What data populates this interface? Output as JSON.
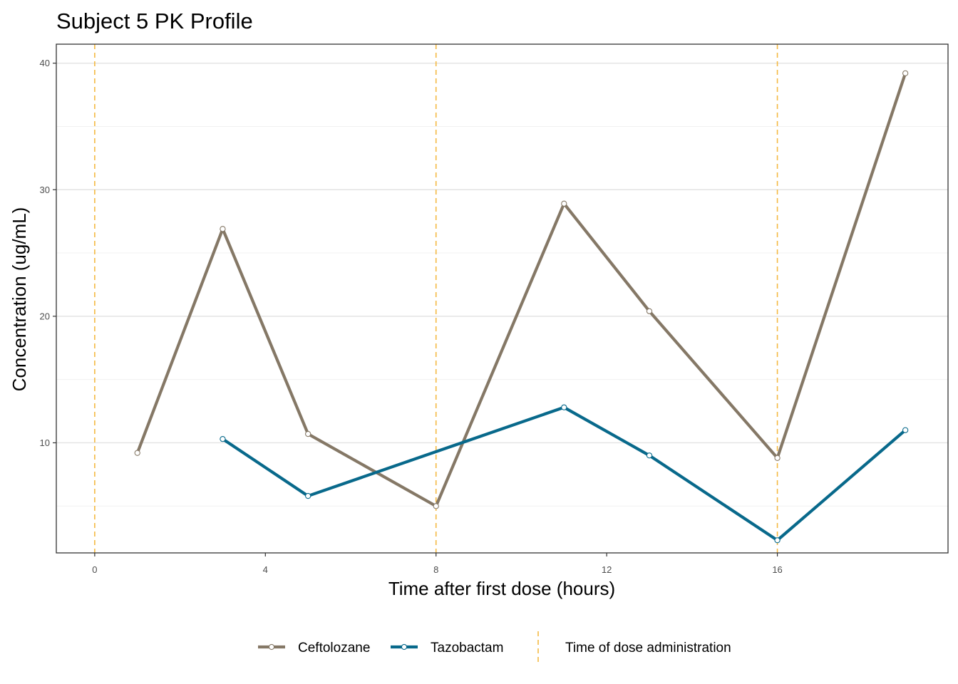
{
  "chart_data": {
    "type": "line",
    "title": "Subject 5 PK Profile",
    "xlabel": "Time after first dose (hours)",
    "ylabel": "Concentration (ug/mL)",
    "xlim": [
      -0.9,
      20
    ],
    "ylim": [
      1.3,
      41.5
    ],
    "x_ticks": [
      0,
      4,
      8,
      12,
      16
    ],
    "x_tick_labels": [
      "0",
      "4",
      "8",
      "12",
      "16"
    ],
    "y_ticks": [
      10,
      20,
      30,
      40
    ],
    "y_tick_labels": [
      "10",
      "20",
      "30",
      "40"
    ],
    "y_minor_grid": [
      5,
      15,
      25,
      35
    ],
    "grid": true,
    "legend_position": "bottom",
    "series": [
      {
        "name": "Ceftolozane",
        "color": "#857866",
        "x": [
          1,
          3,
          5,
          8,
          11,
          13,
          16,
          19
        ],
        "y": [
          9.2,
          26.9,
          10.7,
          5.0,
          28.9,
          20.4,
          8.8,
          39.2
        ]
      },
      {
        "name": "Tazobactam",
        "color": "#08698b",
        "x": [
          3,
          5,
          11,
          13,
          16,
          19
        ],
        "y": [
          10.3,
          5.8,
          12.8,
          9.0,
          2.3,
          11.0
        ]
      }
    ],
    "dose_times": {
      "label": "Time of dose administration",
      "color": "#f4b942",
      "x": [
        0,
        8,
        16
      ]
    }
  }
}
